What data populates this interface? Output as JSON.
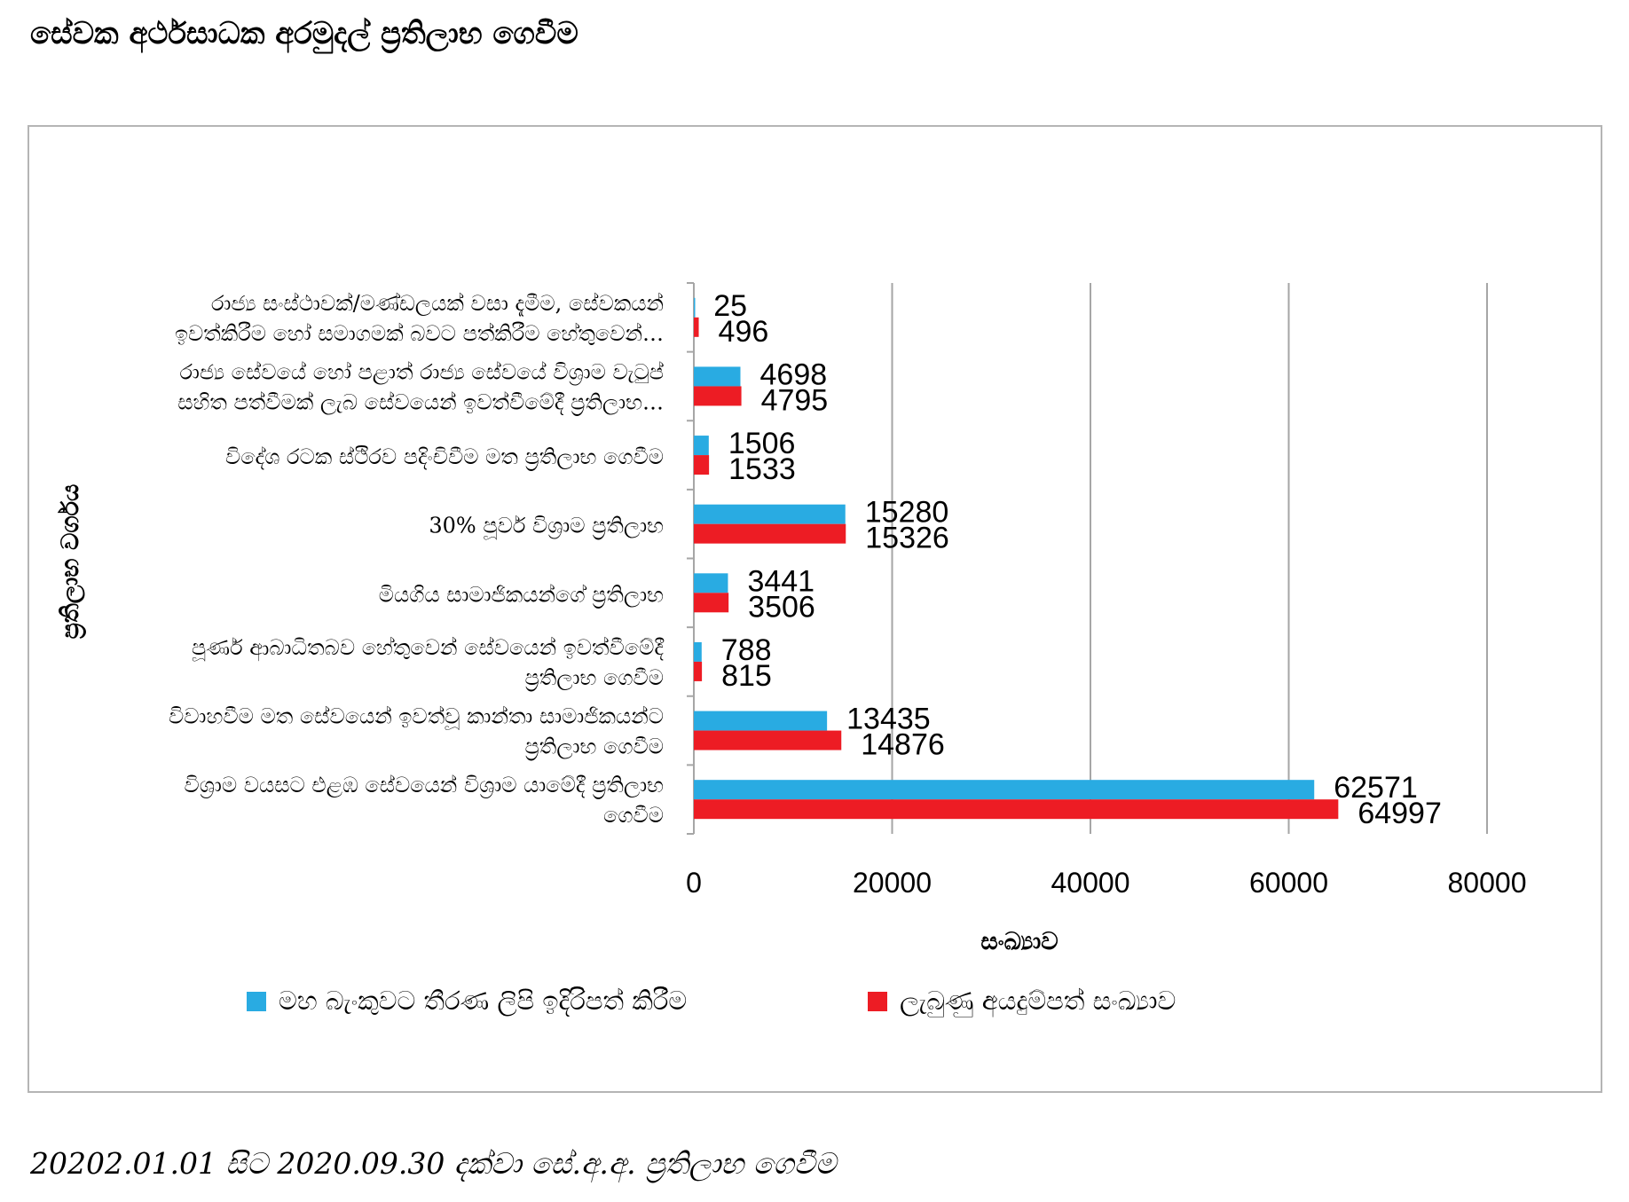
{
  "page": {
    "title": "සේවක අර්ථසාධක අරමුදල් ප්‍රතිලාභ ගෙවීම",
    "footer": "20202.01.01 සිට 2020.09.30 දක්වා සේ.අ.අ. ප්‍රතිලාභ ගෙවීම"
  },
  "chart_data": {
    "type": "bar",
    "orientation": "horizontal",
    "ylabel": "ප්‍රතිලාභ වර්ගය",
    "xlabel": "සංඛ්‍යාව",
    "xlim": [
      0,
      80000
    ],
    "xticks": [
      "0",
      "20000",
      "40000",
      "60000",
      "80000"
    ],
    "xtick_values": [
      0,
      20000,
      40000,
      60000,
      80000
    ],
    "grid": "vertical",
    "legend_position": "bottom",
    "categories": [
      {
        "line1": "රාජ්‍ය සංස්ථාවක්/මණ්ඩලයක් වසා දැමීම, සේවකයන්",
        "line2": "ඉවත්කිරීම හෝ සමාගමක් බවට පත්කිරීම හේතුවෙන්…"
      },
      {
        "line1": "රාජ්‍ය සේවයේ හෝ පළාත් රාජ්‍ය සේවයේ විශ්‍රාම වැටුප්",
        "line2": "සහිත පත්වීමක් ලැබ සේවයෙන් ඉවත්වීමේදී ප්‍රතිලාභ…"
      },
      {
        "line1": "විදේශ රටක ස්ථිරව පදිංචිවීම මත ප්‍රතිලාභ ගෙවීම",
        "line2": ""
      },
      {
        "line1": "30%  පූර්ව විශ්‍රාම ප්‍රතිලාභ",
        "line2": ""
      },
      {
        "line1": "මියගිය සාමාජිකයන්ගේ ප්‍රතිලාභ",
        "line2": ""
      },
      {
        "line1": "පූර්ණ ආබාධිතබව හේතුවෙන් සේවයෙන් ඉවත්වීමේදී",
        "line2": "ප්‍රතිලාභ ගෙවීම"
      },
      {
        "line1": "විවාහවීම මත සේවයෙන් ඉවත්වූ කාන්තා සාමාජිකයන්ට",
        "line2": "ප්‍රතිලාභ ගෙවීම"
      },
      {
        "line1": "විශ්‍රාම වයසට එළඹ සේවයෙන් විශ්‍රාම යාමේදී ප්‍රතිලාභ",
        "line2": "ගෙවීම"
      }
    ],
    "series": [
      {
        "name": "මහ බැංකුවට තීරණ ලිපි ඉදිරිපත් කිරීම",
        "color": "#29abe2",
        "values": [
          25,
          4698,
          1506,
          15280,
          3441,
          788,
          13435,
          62571
        ]
      },
      {
        "name": "ලැබුණු අයදුම්පත් සංඛ්‍යාව",
        "color": "#ed1c24",
        "values": [
          496,
          4795,
          1533,
          15326,
          3506,
          815,
          14876,
          64997
        ]
      }
    ]
  }
}
